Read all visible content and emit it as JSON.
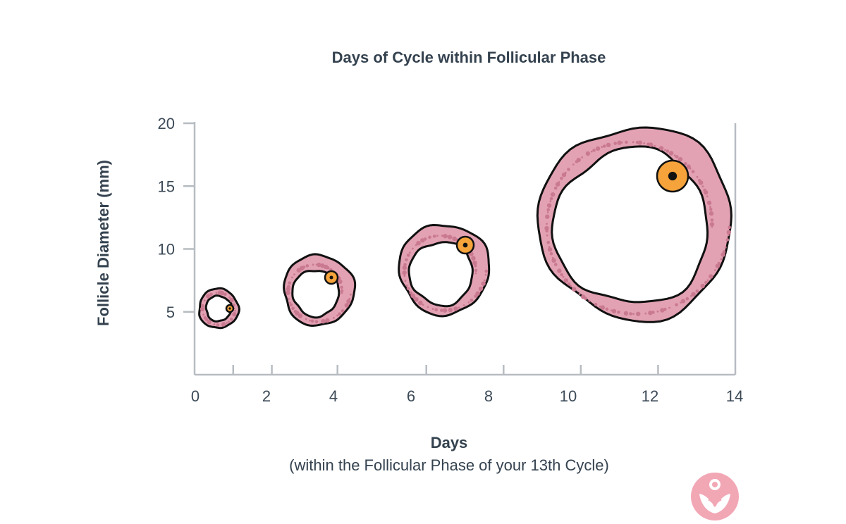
{
  "chart_data": {
    "type": "scatter",
    "title": "Days of Cycle within Follicular Phase",
    "xlabel": "Days",
    "xlabel_sub": "(within the Follicular Phase of your 13th Cycle)",
    "ylabel": "Follicle Diameter (mm)",
    "xlim": [
      0,
      14
    ],
    "ylim": [
      0,
      20
    ],
    "x_ticks": [
      "0",
      "2",
      "4",
      "6",
      "8",
      "10",
      "12",
      "14"
    ],
    "y_ticks": [
      "5",
      "10",
      "15",
      "20"
    ],
    "grid": false,
    "points": [
      {
        "day": 1,
        "diameter_mm": 3
      },
      {
        "day": 3.7,
        "diameter_mm": 5.5
      },
      {
        "day": 6.9,
        "diameter_mm": 7.5
      },
      {
        "day": 11.7,
        "diameter_mm": 13.7
      }
    ],
    "colors": {
      "follicle_fill": "#e3a2b4",
      "follicle_dot": "#c97990",
      "outline": "#111111",
      "oocyte": "#f5a33a",
      "axis": "#b7bcc1",
      "logo": "#f2a7b5"
    }
  },
  "logo": {
    "icon": "brand-logo-icon"
  }
}
